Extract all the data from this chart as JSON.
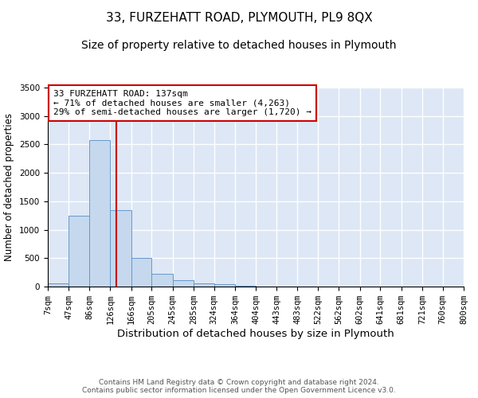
{
  "title": "33, FURZEHATT ROAD, PLYMOUTH, PL9 8QX",
  "subtitle": "Size of property relative to detached houses in Plymouth",
  "xlabel": "Distribution of detached houses by size in Plymouth",
  "ylabel": "Number of detached properties",
  "bin_edges": [
    7,
    47,
    86,
    126,
    166,
    205,
    245,
    285,
    324,
    364,
    404,
    443,
    483,
    522,
    562,
    602,
    641,
    681,
    721,
    760,
    800
  ],
  "bin_labels": [
    "7sqm",
    "47sqm",
    "86sqm",
    "126sqm",
    "166sqm",
    "205sqm",
    "245sqm",
    "285sqm",
    "324sqm",
    "364sqm",
    "404sqm",
    "443sqm",
    "483sqm",
    "522sqm",
    "562sqm",
    "602sqm",
    "641sqm",
    "681sqm",
    "721sqm",
    "760sqm",
    "800sqm"
  ],
  "bar_heights": [
    50,
    1250,
    2575,
    1350,
    500,
    230,
    110,
    50,
    40,
    15,
    5,
    5,
    5,
    0,
    0,
    0,
    0,
    0,
    0,
    0
  ],
  "bar_color": "#c5d8ee",
  "bar_edge_color": "#6699cc",
  "vline_x": 137,
  "vline_color": "#cc0000",
  "annotation_text": "33 FURZEHATT ROAD: 137sqm\n← 71% of detached houses are smaller (4,263)\n29% of semi-detached houses are larger (1,720) →",
  "annotation_box_color": "#cc0000",
  "ylim": [
    0,
    3500
  ],
  "yticks": [
    0,
    500,
    1000,
    1500,
    2000,
    2500,
    3000,
    3500
  ],
  "background_color": "#dde7f5",
  "grid_color": "#ffffff",
  "footer_text": "Contains HM Land Registry data © Crown copyright and database right 2024.\nContains public sector information licensed under the Open Government Licence v3.0.",
  "title_fontsize": 11,
  "subtitle_fontsize": 10,
  "xlabel_fontsize": 9.5,
  "ylabel_fontsize": 8.5,
  "annotation_fontsize": 8,
  "tick_fontsize": 7.5,
  "footer_fontsize": 6.5
}
